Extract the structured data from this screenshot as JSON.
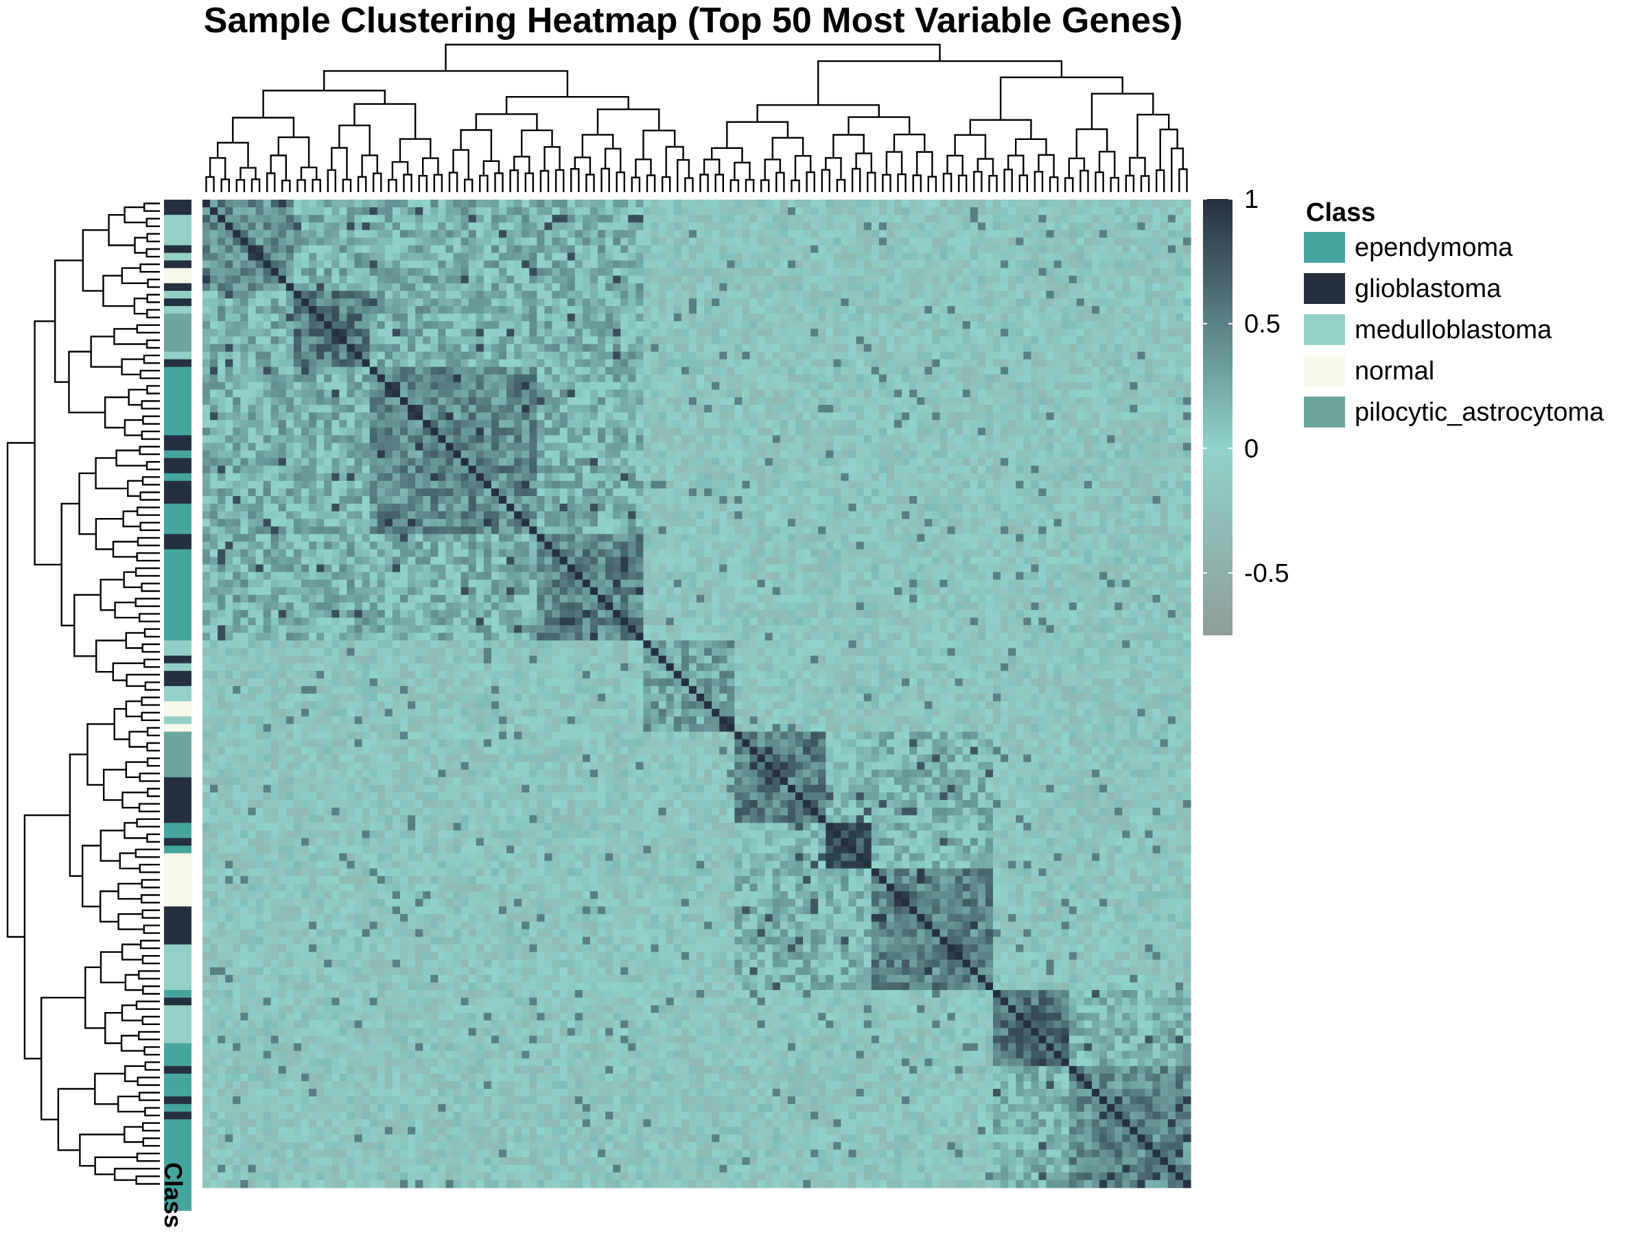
{
  "chart_data": {
    "type": "heatmap",
    "title": "Sample Clustering Heatmap (Top 50 Most Variable Genes)",
    "n_samples": 130,
    "value_range": [
      -0.75,
      1
    ],
    "colorbar": {
      "ticks": [
        1,
        0.5,
        0,
        -0.5
      ],
      "tick_labels": [
        "1",
        "0.5",
        "0",
        "-0.5"
      ],
      "colors": {
        "low": "#8e9e99",
        "mid": "#90d3cb",
        "high": "#243040"
      }
    },
    "annotation": {
      "label": "Class",
      "legend_title": "Class",
      "classes": [
        {
          "name": "ependymoma",
          "color": "#45a59f"
        },
        {
          "name": "glioblastoma",
          "color": "#243040"
        },
        {
          "name": "medulloblastoma",
          "color": "#93d0c8"
        },
        {
          "name": "normal",
          "color": "#f7f9e9"
        },
        {
          "name": "pilocytic_astrocytoma",
          "color": "#6ea69e"
        }
      ],
      "row_classes": [
        "glioblastoma",
        "glioblastoma",
        "medulloblastoma",
        "medulloblastoma",
        "medulloblastoma",
        "medulloblastoma",
        "glioblastoma",
        "medulloblastoma",
        "glioblastoma",
        "normal",
        "normal",
        "glioblastoma",
        "medulloblastoma",
        "glioblastoma",
        "medulloblastoma",
        "pilocytic_astrocytoma",
        "pilocytic_astrocytoma",
        "pilocytic_astrocytoma",
        "pilocytic_astrocytoma",
        "pilocytic_astrocytoma",
        "medulloblastoma",
        "glioblastoma",
        "ependymoma",
        "ependymoma",
        "ependymoma",
        "ependymoma",
        "ependymoma",
        "ependymoma",
        "ependymoma",
        "ependymoma",
        "ependymoma",
        "glioblastoma",
        "glioblastoma",
        "ependymoma",
        "glioblastoma",
        "glioblastoma",
        "ependymoma",
        "glioblastoma",
        "glioblastoma",
        "glioblastoma",
        "ependymoma",
        "ependymoma",
        "ependymoma",
        "ependymoma",
        "glioblastoma",
        "glioblastoma",
        "ependymoma",
        "ependymoma",
        "ependymoma",
        "ependymoma",
        "ependymoma",
        "ependymoma",
        "ependymoma",
        "ependymoma",
        "ependymoma",
        "ependymoma",
        "ependymoma",
        "ependymoma",
        "medulloblastoma",
        "medulloblastoma",
        "glioblastoma",
        "medulloblastoma",
        "glioblastoma",
        "glioblastoma",
        "medulloblastoma",
        "medulloblastoma",
        "normal",
        "normal",
        "medulloblastoma",
        "normal",
        "pilocytic_astrocytoma",
        "pilocytic_astrocytoma",
        "pilocytic_astrocytoma",
        "pilocytic_astrocytoma",
        "pilocytic_astrocytoma",
        "pilocytic_astrocytoma",
        "glioblastoma",
        "glioblastoma",
        "glioblastoma",
        "glioblastoma",
        "glioblastoma",
        "glioblastoma",
        "ependymoma",
        "ependymoma",
        "glioblastoma",
        "ependymoma",
        "normal",
        "normal",
        "normal",
        "normal",
        "normal",
        "normal",
        "normal",
        "glioblastoma",
        "glioblastoma",
        "glioblastoma",
        "glioblastoma",
        "glioblastoma",
        "medulloblastoma",
        "medulloblastoma",
        "medulloblastoma",
        "medulloblastoma",
        "medulloblastoma",
        "medulloblastoma",
        "ependymoma",
        "glioblastoma",
        "medulloblastoma",
        "medulloblastoma",
        "medulloblastoma",
        "medulloblastoma",
        "medulloblastoma",
        "ependymoma",
        "ependymoma",
        "ependymoma",
        "glioblastoma",
        "ependymoma",
        "ependymoma",
        "ependymoma",
        "glioblastoma",
        "ependymoma",
        "glioblastoma",
        "ependymoma",
        "ependymoma",
        "ependymoma",
        "ependymoma",
        "ependymoma",
        "ependymoma",
        "ependymoma",
        "ependymoma",
        "ependymoma",
        "ependymoma",
        "ependymoma",
        "ependymoma"
      ]
    },
    "blocks": [
      {
        "name": "b1",
        "start": 0,
        "end": 12,
        "within": 0.45
      },
      {
        "name": "b2",
        "start": 12,
        "end": 22,
        "within": 0.55
      },
      {
        "name": "b3",
        "start": 22,
        "end": 44,
        "within": 0.45
      },
      {
        "name": "b4",
        "start": 44,
        "end": 58,
        "within": 0.48
      },
      {
        "name": "b5",
        "start": 58,
        "end": 70,
        "within": 0.3
      },
      {
        "name": "b6",
        "start": 70,
        "end": 82,
        "within": 0.55
      },
      {
        "name": "b7",
        "start": 82,
        "end": 88,
        "within": 0.85
      },
      {
        "name": "b8",
        "start": 88,
        "end": 104,
        "within": 0.5
      },
      {
        "name": "b9",
        "start": 104,
        "end": 114,
        "within": 0.6
      },
      {
        "name": "b10",
        "start": 114,
        "end": 130,
        "within": 0.45
      }
    ],
    "block_groups": [
      {
        "name": "g1",
        "blocks": [
          "b1",
          "b2",
          "b3",
          "b4"
        ],
        "between": 0.2
      },
      {
        "name": "g2",
        "blocks": [
          "b6",
          "b7",
          "b8"
        ],
        "between": 0.15
      },
      {
        "name": "g3",
        "blocks": [
          "b9",
          "b10"
        ],
        "between": 0.15
      }
    ],
    "between_default": -0.1,
    "diagonal": 1,
    "row_dendrogram_side": "left",
    "column_dendrogram_side": "top",
    "legend_position": "right"
  }
}
